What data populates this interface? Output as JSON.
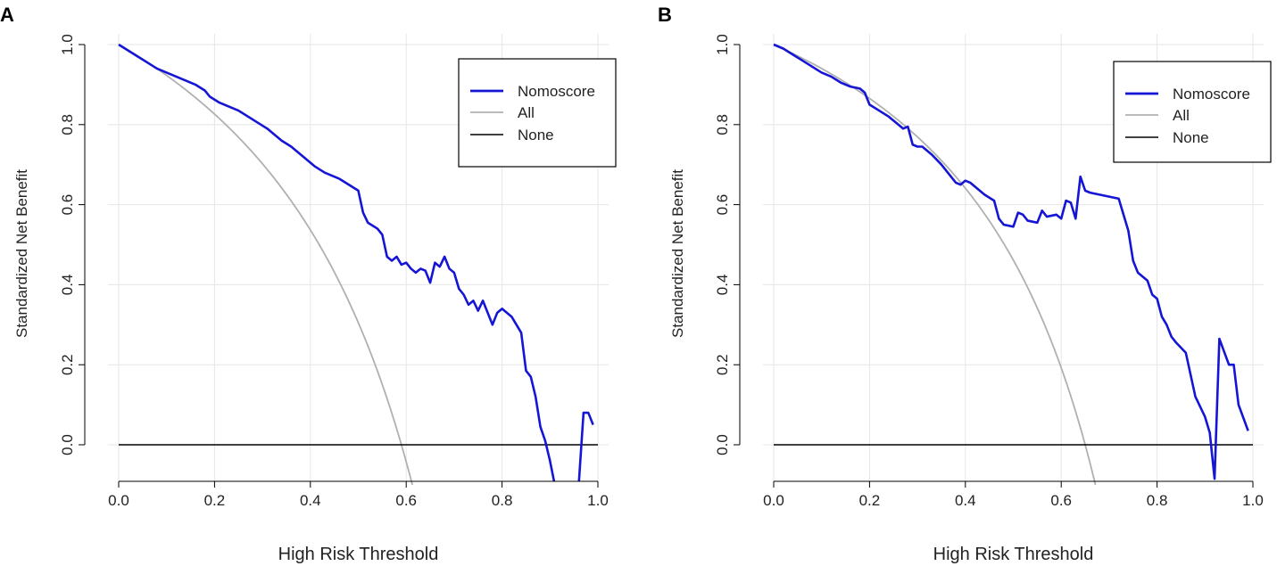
{
  "colors": {
    "model": "#1515d6",
    "all": "#b0b0b0",
    "none": "#000000",
    "grid": "#e6e6e6"
  },
  "chart_data": [
    {
      "panel": "A",
      "type": "line",
      "title": "",
      "xlabel": "High Risk Threshold",
      "ylabel": "Standardized Net Benefit",
      "xlim": [
        0,
        1
      ],
      "ylim": [
        -0.1,
        1.0
      ],
      "xticks": [
        "0.0",
        "0.2",
        "0.4",
        "0.6",
        "0.8",
        "1.0"
      ],
      "yticks": [
        "0.0",
        "0.2",
        "0.4",
        "0.6",
        "0.8",
        "1.0"
      ],
      "grid": true,
      "legend_position": "top-right",
      "legend": [
        "Nomoscore",
        "All",
        "None"
      ],
      "series": [
        {
          "name": "Nomoscore",
          "x": [
            0.0,
            0.02,
            0.04,
            0.06,
            0.08,
            0.1,
            0.12,
            0.14,
            0.16,
            0.18,
            0.19,
            0.21,
            0.23,
            0.25,
            0.27,
            0.29,
            0.31,
            0.33,
            0.34,
            0.36,
            0.38,
            0.39,
            0.41,
            0.43,
            0.45,
            0.46,
            0.48,
            0.5,
            0.51,
            0.52,
            0.54,
            0.55,
            0.56,
            0.57,
            0.58,
            0.59,
            0.6,
            0.61,
            0.62,
            0.63,
            0.64,
            0.65,
            0.66,
            0.67,
            0.68,
            0.69,
            0.7,
            0.71,
            0.72,
            0.73,
            0.74,
            0.75,
            0.76,
            0.77,
            0.78,
            0.79,
            0.8,
            0.81,
            0.82,
            0.83,
            0.84,
            0.85,
            0.86,
            0.87,
            0.88,
            0.89,
            0.9,
            0.91,
            0.92,
            0.96,
            0.97,
            0.98,
            0.99
          ],
          "y": [
            1.0,
            0.985,
            0.97,
            0.955,
            0.94,
            0.93,
            0.92,
            0.91,
            0.9,
            0.885,
            0.87,
            0.855,
            0.845,
            0.835,
            0.82,
            0.805,
            0.79,
            0.77,
            0.76,
            0.745,
            0.725,
            0.715,
            0.695,
            0.68,
            0.67,
            0.665,
            0.65,
            0.635,
            0.58,
            0.555,
            0.54,
            0.525,
            0.47,
            0.46,
            0.47,
            0.45,
            0.455,
            0.44,
            0.43,
            0.44,
            0.435,
            0.405,
            0.455,
            0.445,
            0.47,
            0.44,
            0.43,
            0.39,
            0.375,
            0.35,
            0.36,
            0.335,
            0.36,
            0.33,
            0.3,
            0.33,
            0.34,
            0.33,
            0.32,
            0.3,
            0.28,
            0.185,
            0.17,
            0.12,
            0.045,
            0.01,
            -0.04,
            -0.1,
            -0.1,
            -0.1,
            0.08,
            0.08,
            0.05
          ]
        },
        {
          "name": "All",
          "curve": "net benefit of treating all, prevalence ≈ 0.59"
        },
        {
          "name": "None",
          "value": 0.0
        }
      ]
    },
    {
      "panel": "B",
      "type": "line",
      "title": "",
      "xlabel": "High Risk Threshold",
      "ylabel": "Standardized Net Benefit",
      "xlim": [
        0,
        1
      ],
      "ylim": [
        -0.1,
        1.0
      ],
      "xticks": [
        "0.0",
        "0.2",
        "0.4",
        "0.6",
        "0.8",
        "1.0"
      ],
      "yticks": [
        "0.0",
        "0.2",
        "0.4",
        "0.6",
        "0.8",
        "1.0"
      ],
      "grid": true,
      "legend_position": "top-right",
      "legend": [
        "Nomoscore",
        "All",
        "None"
      ],
      "series": [
        {
          "name": "Nomoscore",
          "x": [
            0.0,
            0.02,
            0.04,
            0.06,
            0.08,
            0.1,
            0.12,
            0.14,
            0.16,
            0.18,
            0.19,
            0.2,
            0.22,
            0.24,
            0.26,
            0.27,
            0.28,
            0.29,
            0.3,
            0.31,
            0.33,
            0.35,
            0.36,
            0.37,
            0.38,
            0.39,
            0.4,
            0.41,
            0.42,
            0.44,
            0.46,
            0.47,
            0.48,
            0.5,
            0.51,
            0.52,
            0.53,
            0.55,
            0.56,
            0.57,
            0.59,
            0.6,
            0.61,
            0.62,
            0.63,
            0.64,
            0.65,
            0.66,
            0.72,
            0.74,
            0.75,
            0.76,
            0.77,
            0.78,
            0.79,
            0.8,
            0.81,
            0.82,
            0.83,
            0.84,
            0.86,
            0.88,
            0.9,
            0.91,
            0.92,
            0.93,
            0.95,
            0.96,
            0.97,
            0.99
          ],
          "y": [
            1.0,
            0.99,
            0.975,
            0.96,
            0.945,
            0.93,
            0.92,
            0.905,
            0.895,
            0.89,
            0.88,
            0.85,
            0.835,
            0.82,
            0.8,
            0.79,
            0.795,
            0.75,
            0.745,
            0.745,
            0.725,
            0.7,
            0.685,
            0.67,
            0.655,
            0.65,
            0.66,
            0.655,
            0.645,
            0.625,
            0.61,
            0.565,
            0.55,
            0.545,
            0.58,
            0.575,
            0.56,
            0.555,
            0.585,
            0.57,
            0.575,
            0.565,
            0.61,
            0.605,
            0.565,
            0.67,
            0.635,
            0.63,
            0.615,
            0.535,
            0.46,
            0.43,
            0.42,
            0.41,
            0.375,
            0.365,
            0.32,
            0.3,
            0.27,
            0.255,
            0.23,
            0.12,
            0.07,
            0.03,
            -0.085,
            0.265,
            0.2,
            0.2,
            0.1,
            0.035
          ]
        },
        {
          "name": "All",
          "curve": "net benefit of treating all, prevalence ≈ 0.65"
        },
        {
          "name": "None",
          "value": 0.0
        }
      ]
    }
  ]
}
